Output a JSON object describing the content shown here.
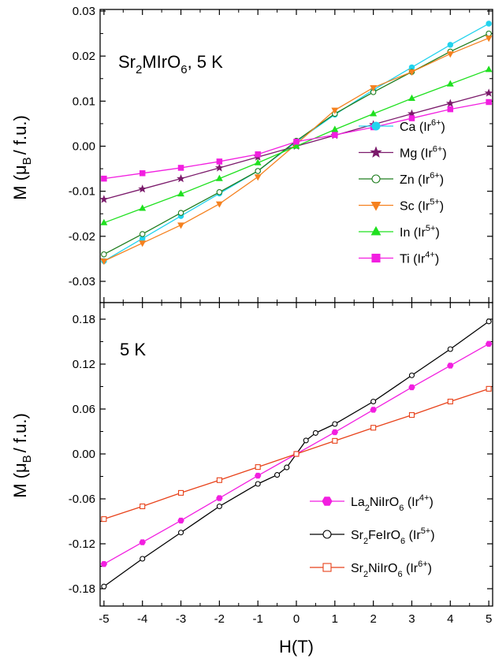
{
  "x_axis": {
    "label": "H(T)",
    "ticks": [
      "-5",
      "-4",
      "-3",
      "-2",
      "-1",
      "0",
      "1",
      "2",
      "3",
      "4",
      "5"
    ]
  },
  "chart_data": [
    {
      "type": "line",
      "title_parts": [
        "Sr",
        "2",
        "MIrO",
        "6",
        ", 5 K"
      ],
      "ylabel_parts": [
        "M (",
        "μ",
        "B",
        "/ f.u.)"
      ],
      "xlabel": "H(T)",
      "xlim": [
        -5.1,
        5.1
      ],
      "ylim": [
        -0.035,
        0.03
      ],
      "yticks": [
        "0.03",
        "0.02",
        "0.01",
        "0.00",
        "-0.01",
        "-0.02",
        "-0.03"
      ],
      "ytick_values": [
        0.03,
        0.02,
        0.01,
        0.0,
        -0.01,
        -0.02,
        -0.03
      ],
      "legend_position": "lower-right",
      "series": [
        {
          "name": "Ca",
          "legend_parts": [
            "Ca (Ir",
            "6+",
            ")"
          ],
          "color": "#22d3ee",
          "marker": "circle",
          "filled": true,
          "x": [
            -5,
            -4,
            -3,
            -2,
            -1,
            0,
            1,
            2,
            3,
            4,
            5
          ],
          "y": [
            -0.0255,
            -0.0205,
            -0.0155,
            -0.0105,
            -0.0055,
            0.001,
            0.007,
            0.0125,
            0.0175,
            0.0225,
            0.0272
          ]
        },
        {
          "name": "Mg",
          "legend_parts": [
            "Mg (Ir",
            "6+",
            ")"
          ],
          "color": "#7b1a6b",
          "marker": "star",
          "filled": true,
          "x": [
            -5,
            -4,
            -3,
            -2,
            -1,
            0,
            1,
            2,
            3,
            4,
            5
          ],
          "y": [
            -0.0118,
            -0.0095,
            -0.0072,
            -0.0048,
            -0.0024,
            0.0,
            0.0024,
            0.0048,
            0.0072,
            0.0095,
            0.0118
          ]
        },
        {
          "name": "Zn",
          "legend_parts": [
            "Zn (Ir",
            "6+",
            ")"
          ],
          "color": "#1e7d1e",
          "marker": "circle",
          "filled": false,
          "x": [
            -5,
            -4,
            -3,
            -2,
            -1,
            0,
            1,
            2,
            3,
            4,
            5
          ],
          "y": [
            -0.024,
            -0.0195,
            -0.0148,
            -0.0102,
            -0.0055,
            0.0012,
            0.0072,
            0.012,
            0.0165,
            0.021,
            0.025
          ]
        },
        {
          "name": "Sc",
          "legend_parts": [
            "Sc (Ir",
            "5+",
            ")"
          ],
          "color": "#f5811f",
          "marker": "triangle-down",
          "filled": true,
          "x": [
            -5,
            -4,
            -3,
            -2,
            -1,
            0,
            1,
            2,
            3,
            4,
            5
          ],
          "y": [
            -0.0255,
            -0.0215,
            -0.0175,
            -0.0128,
            -0.0068,
            0.0005,
            0.008,
            0.013,
            0.0165,
            0.0205,
            0.024
          ]
        },
        {
          "name": "In",
          "legend_parts": [
            "In (Ir",
            "5+",
            ")"
          ],
          "color": "#1fe01f",
          "marker": "triangle-up",
          "filled": true,
          "x": [
            -5,
            -4,
            -3,
            -2,
            -1,
            0,
            1,
            2,
            3,
            4,
            5
          ],
          "y": [
            -0.017,
            -0.0138,
            -0.0106,
            -0.0072,
            -0.0037,
            0.0,
            0.0037,
            0.0072,
            0.0106,
            0.0138,
            0.017
          ]
        },
        {
          "name": "Ti",
          "legend_parts": [
            "Ti (Ir",
            "4+",
            ")"
          ],
          "color": "#f21fe0",
          "marker": "square",
          "filled": true,
          "x": [
            -5,
            -4,
            -3,
            -2,
            -1,
            0,
            1,
            2,
            3,
            4,
            5
          ],
          "y": [
            -0.0072,
            -0.006,
            -0.0048,
            -0.0034,
            -0.0018,
            0.001,
            0.0025,
            0.0042,
            0.0062,
            0.0082,
            0.0098
          ]
        }
      ]
    },
    {
      "type": "line",
      "title_parts": [
        "5 K"
      ],
      "ylabel_parts": [
        "M (",
        "μ",
        "B",
        "/ f.u.)"
      ],
      "xlabel": "H(T)",
      "xlim": [
        -5.1,
        5.1
      ],
      "ylim": [
        -0.2,
        0.19
      ],
      "yticks": [
        "0.18",
        "0.12",
        "0.06",
        "0.00",
        "-0.06",
        "-0.12",
        "-0.18"
      ],
      "ytick_values": [
        0.18,
        0.12,
        0.06,
        0.0,
        -0.06,
        -0.12,
        -0.18
      ],
      "legend_position": "lower-right",
      "series": [
        {
          "name": "La2NiIrO6",
          "legend_parts": [
            "La",
            "2",
            "NiIrO",
            "6",
            " (Ir",
            "4+",
            ")"
          ],
          "color": "#f21fe0",
          "marker": "hexagon",
          "filled": true,
          "x": [
            -5,
            -4,
            -3,
            -2,
            -1,
            0,
            1,
            2,
            3,
            4,
            5
          ],
          "y": [
            -0.147,
            -0.118,
            -0.089,
            -0.059,
            -0.029,
            0.0,
            0.029,
            0.059,
            0.089,
            0.118,
            0.147
          ]
        },
        {
          "name": "Sr2FeIrO6",
          "legend_parts": [
            "Sr",
            "2",
            "FeIrO",
            "6",
            " (Ir",
            "5+",
            ")"
          ],
          "color": "#000000",
          "marker": "circle",
          "filled": false,
          "x": [
            -5,
            -4,
            -3,
            -2,
            -1,
            -0.5,
            -0.25,
            0,
            0.25,
            0.5,
            1,
            2,
            3,
            4,
            5
          ],
          "y": [
            -0.177,
            -0.14,
            -0.105,
            -0.07,
            -0.04,
            -0.028,
            -0.018,
            0.0,
            0.018,
            0.028,
            0.04,
            0.07,
            0.105,
            0.14,
            0.177
          ]
        },
        {
          "name": "Sr2NiIrO6",
          "legend_parts": [
            "Sr",
            "2",
            "NiIrO",
            "6",
            " (Ir",
            "6+",
            ")"
          ],
          "color": "#e8421a",
          "marker": "square",
          "filled": false,
          "x": [
            -5,
            -4,
            -3,
            -2,
            -1,
            0,
            1,
            2,
            3,
            4,
            5
          ],
          "y": [
            -0.087,
            -0.07,
            -0.052,
            -0.035,
            -0.0175,
            0.0,
            0.0175,
            0.035,
            0.052,
            0.07,
            0.087
          ]
        }
      ]
    }
  ]
}
